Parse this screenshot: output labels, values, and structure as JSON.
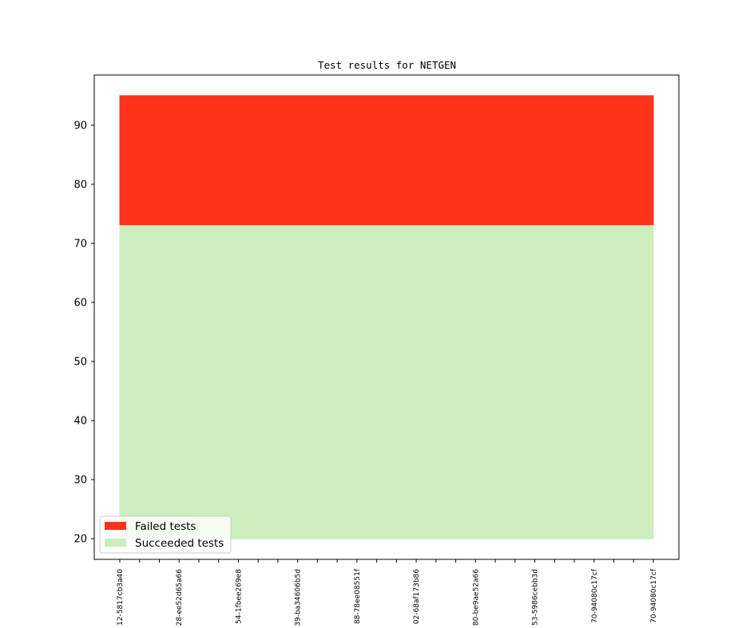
{
  "chart_data": {
    "type": "area",
    "title": "Test results for NETGEN",
    "xlabel": "",
    "ylabel": "",
    "ylim": [
      16.5,
      98.5
    ],
    "yticks": [
      20,
      30,
      40,
      50,
      60,
      70,
      80,
      90
    ],
    "grid": false,
    "legend_position": "lower-left",
    "x_tick_labels": [
      "12-5817cb3a40",
      "28-ee52d65a66",
      "54-1fbee269e8",
      "39-ba34606b5d",
      "88-78ee08551f",
      "02-68af173b86",
      "80-be9ae52a66",
      "53-5986cebb3d",
      "70-94080c17cf",
      "70-94080c17cf"
    ],
    "x_minor_ticks_between": 2,
    "series": [
      {
        "name": "Failed tests",
        "color": "#ff3319",
        "lower": [
          73,
          73,
          73,
          73,
          73,
          73,
          73,
          73,
          73,
          73
        ],
        "upper": [
          95,
          95,
          95,
          95,
          95,
          95,
          95,
          95,
          95,
          95
        ]
      },
      {
        "name": "Succeeded tests",
        "color": "#ccedbd",
        "lower": [
          20,
          20,
          20,
          20,
          20,
          20,
          20,
          20,
          20,
          20
        ],
        "upper": [
          73,
          73,
          73,
          73,
          73,
          73,
          73,
          73,
          73,
          73
        ]
      }
    ]
  }
}
